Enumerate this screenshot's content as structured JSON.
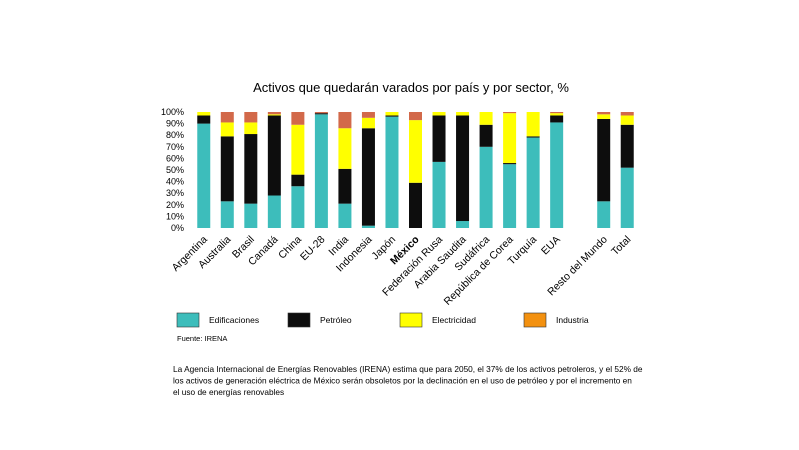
{
  "chart_data": {
    "type": "stacked_bar",
    "title": "Activos que quedarán varados por país y por sector, %",
    "categories": [
      "Argentina",
      "Australia",
      "Brasil",
      "Canadá",
      "China",
      "EU-28",
      "India",
      "Indonesia",
      "Japón",
      "México",
      "Federación Rusa",
      "Arabia Saudita",
      "Sudáfrica",
      "República de Corea",
      "Turquía",
      "EUA",
      null,
      "Resto del Mundo",
      "Total"
    ],
    "highlight": "México",
    "series": [
      {
        "name": "Edificaciones",
        "color": "#3dbdbb",
        "values": [
          90,
          23,
          21,
          28,
          36,
          98,
          21,
          2,
          96,
          0,
          57,
          6,
          70,
          55,
          78,
          91,
          null,
          23,
          52
        ]
      },
      {
        "name": "Petróleo",
        "color": "#0d0d0d",
        "values": [
          7,
          56,
          60,
          69,
          10,
          1,
          30,
          84,
          1,
          39,
          40,
          91,
          19,
          1,
          1,
          6,
          null,
          71,
          37
        ]
      },
      {
        "name": "Electricidad",
        "color": "#ffff00",
        "values": [
          3,
          12,
          10,
          1,
          43,
          0,
          35,
          9,
          3,
          54,
          3,
          3,
          11,
          43,
          21,
          2,
          null,
          4,
          8
        ]
      },
      {
        "name": "Industria",
        "color": "#d2694a",
        "values": [
          0,
          9,
          9,
          2,
          11,
          1,
          14,
          5,
          0,
          7,
          0,
          0,
          0,
          1,
          0,
          1,
          null,
          2,
          3
        ]
      }
    ],
    "ylim": [
      0,
      100
    ],
    "yticks": [
      {
        "value": 0,
        "label": "0%"
      },
      {
        "value": 10,
        "label": "10%"
      },
      {
        "value": 20,
        "label": "20%"
      },
      {
        "value": 30,
        "label": "30%"
      },
      {
        "value": 40,
        "label": "40%"
      },
      {
        "value": 50,
        "label": "50%"
      },
      {
        "value": 60,
        "label": "60%"
      },
      {
        "value": 70,
        "label": "70%"
      },
      {
        "value": 80,
        "label": "80%"
      },
      {
        "value": 90,
        "label": "90%"
      },
      {
        "value": 100,
        "label": "100%"
      }
    ],
    "grid": false,
    "legend": "bottom",
    "source": "Fuente: IRENA",
    "note": [
      "La Agencia Internacional de Energías Renovables (IRENA) estima que para 2050, el 37% de los activos petroleros,  y el 52% de",
      "los activos de generación eléctrica de México serán obsoletos por la declinación  en el uso de petróleo y por el incremento en",
      "el uso de energías renovables"
    ]
  }
}
